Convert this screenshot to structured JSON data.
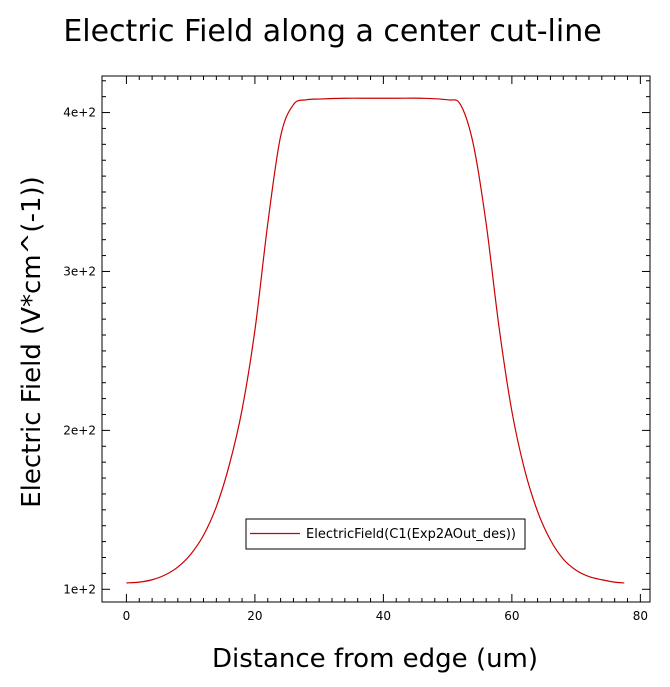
{
  "chart_data": {
    "type": "line",
    "title": "Electric Field along a center cut-line",
    "xlabel": "Distance from edge (um)",
    "ylabel": "Electric Field (V*cm^(-1))",
    "xlim": [
      -3.8,
      81.5
    ],
    "ylim": [
      92,
      423
    ],
    "xticks": [
      0,
      20,
      40,
      60,
      80
    ],
    "xtick_labels": [
      "0",
      "20",
      "40",
      "60",
      "80"
    ],
    "yticks": [
      100,
      200,
      300,
      400
    ],
    "ytick_labels": [
      "1e+2",
      "2e+2",
      "3e+2",
      "4e+2"
    ],
    "grid": false,
    "legend": "bottom-center",
    "line_color": "#cc0000",
    "series": [
      {
        "name": "ElectricField(C1(Exp2AOut_des))",
        "x": [
          0,
          2,
          4,
          6,
          8,
          10,
          12,
          14,
          16,
          18,
          20,
          22,
          24,
          26,
          28,
          30,
          34,
          38,
          42,
          46,
          50,
          52,
          54,
          56,
          58,
          60,
          62,
          64,
          66,
          68,
          70,
          72,
          74,
          76,
          77.5
        ],
        "y": [
          104,
          104.5,
          106,
          109,
          114,
          122,
          134,
          152,
          178,
          213,
          263,
          330,
          385,
          405,
          408,
          408.5,
          409,
          409,
          409,
          409,
          408,
          405,
          380,
          330,
          265,
          212,
          175,
          149,
          131,
          119,
          112,
          108,
          106,
          104.5,
          104
        ]
      }
    ]
  }
}
